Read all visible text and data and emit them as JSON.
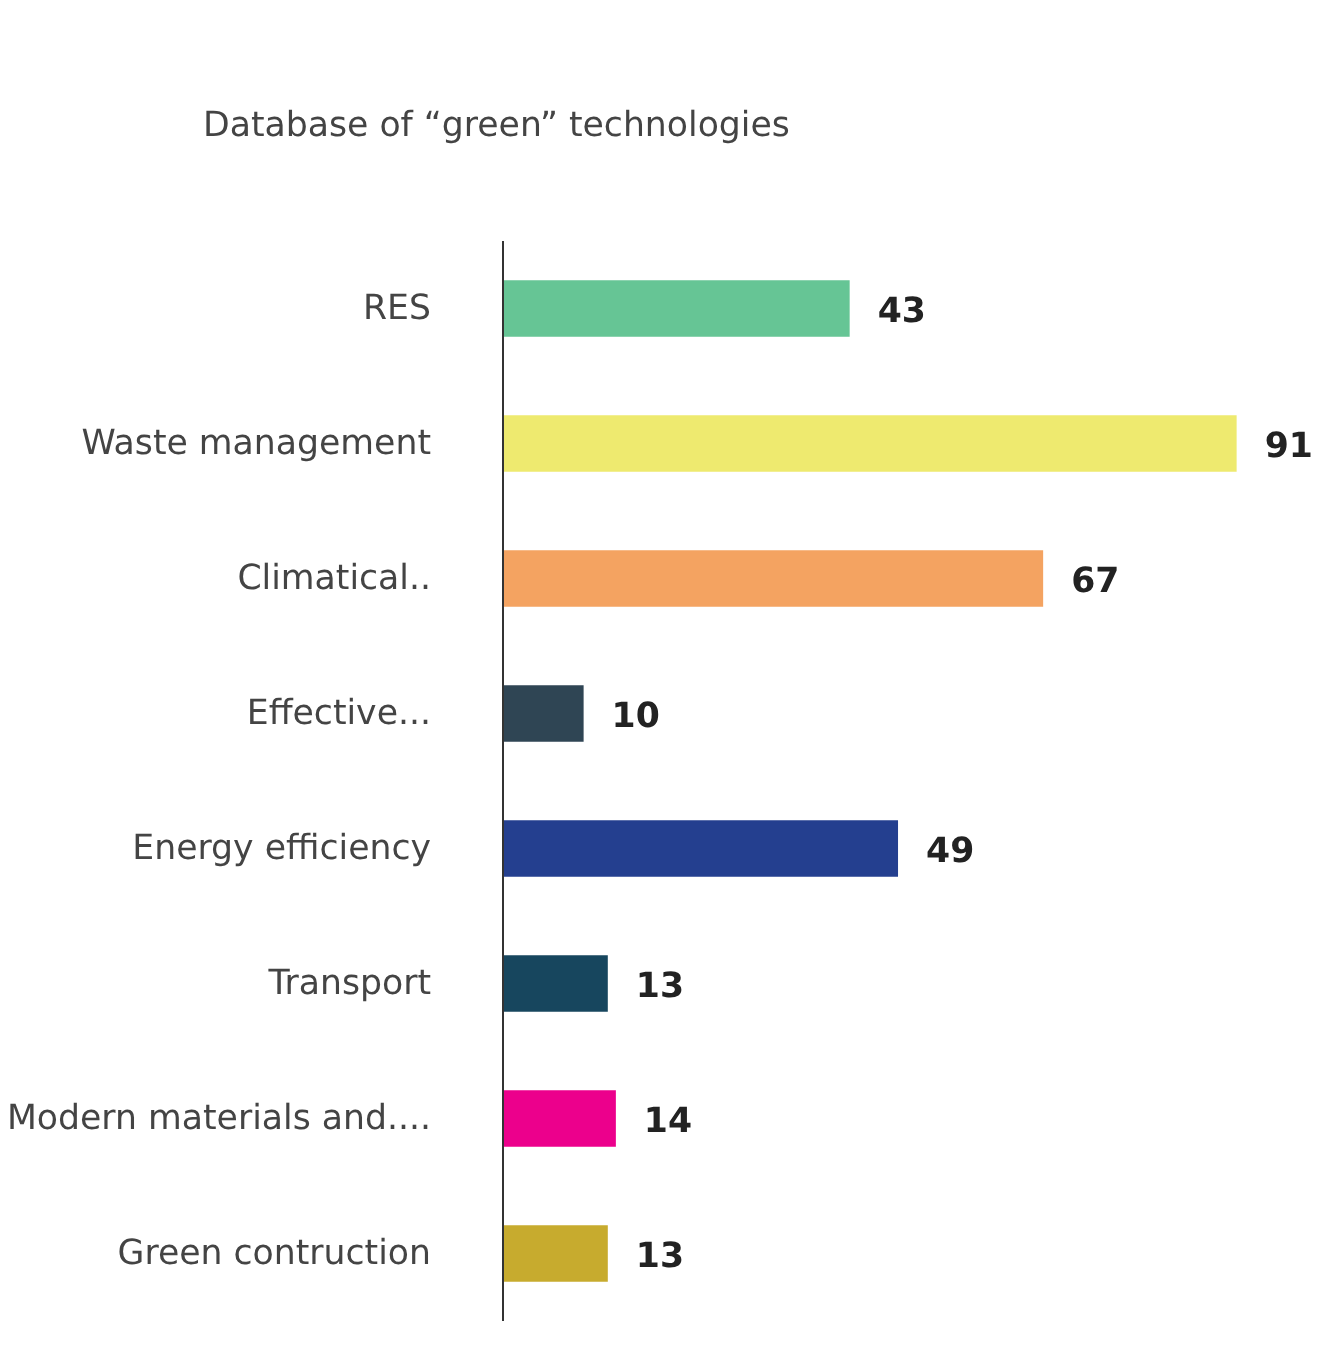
{
  "chart_data": {
    "type": "bar",
    "orientation": "horizontal",
    "title": "Database of “green” technologies",
    "categories": [
      "RES",
      "Waste management",
      "Climatical..",
      "Effective...",
      "Energy efficiency",
      "Transport",
      "Modern materials and....",
      "Green contruction"
    ],
    "values": [
      43,
      91,
      67,
      10,
      49,
      13,
      14,
      13
    ],
    "colors": [
      "#66c595",
      "#eeea6f",
      "#f4a361",
      "#2f4554",
      "#243f8f",
      "#17465e",
      "#ec008c",
      "#c7ab2e"
    ],
    "data_labels": true,
    "grid": false
  }
}
